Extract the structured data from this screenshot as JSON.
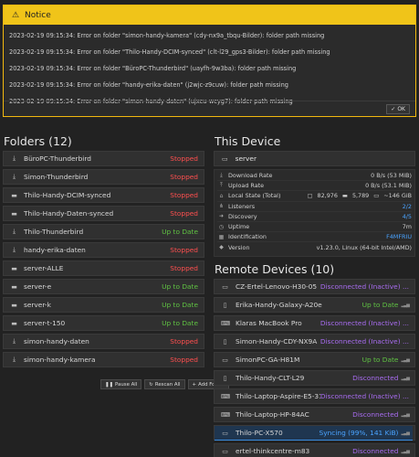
{
  "notice": {
    "title": "Notice",
    "lines": [
      "2023-02-19 09:15:34: Error on folder \"simon-handy-kamera\" (cdy-nx9a_tbqu-Bilder): folder path missing",
      "2023-02-19 09:15:34: Error on folder \"Thilo-Handy-DCIM-synced\" (clt-l29_gps3-Bilder): folder path missing",
      "2023-02-19 09:15:34: Error on folder \"BüroPC-Thunderbird\" (uayfh-9w3ba): folder path missing",
      "2023-02-19 09:15:34: Error on folder \"handy-erika-daten\" (j2wjc-z9cuw): folder path missing",
      "2023-02-19 09:15:34: Error on folder \"simon-handy-daten\" (ujxcu-wcyg7): folder path missing"
    ],
    "ok_label": "OK"
  },
  "folders": {
    "title": "Folders (12)",
    "items": [
      {
        "name": "BüroPC-Thunderbird",
        "status": "Stopped",
        "icon": "download-icon"
      },
      {
        "name": "Simon-Thunderbird",
        "status": "Stopped",
        "icon": "download-icon"
      },
      {
        "name": "Thilo-Handy-DCIM-synced",
        "status": "Stopped",
        "icon": "folder-icon"
      },
      {
        "name": "Thilo-Handy-Daten-synced",
        "status": "Stopped",
        "icon": "folder-icon"
      },
      {
        "name": "Thilo-Thunderbird",
        "status": "Up to Date",
        "icon": "download-icon"
      },
      {
        "name": "handy-erika-daten",
        "status": "Stopped",
        "icon": "download-icon"
      },
      {
        "name": "server-ALLE",
        "status": "Stopped",
        "icon": "folder-icon"
      },
      {
        "name": "server-e",
        "status": "Up to Date",
        "icon": "folder-icon"
      },
      {
        "name": "server-k",
        "status": "Up to Date",
        "icon": "folder-icon"
      },
      {
        "name": "server-t-150",
        "status": "Up to Date",
        "icon": "folder-icon"
      },
      {
        "name": "simon-handy-daten",
        "status": "Stopped",
        "icon": "download-icon"
      },
      {
        "name": "simon-handy-kamera",
        "status": "Stopped",
        "icon": "download-icon"
      }
    ],
    "actions": {
      "pause_all": "Pause All",
      "rescan_all": "Rescan All",
      "add_folder": "Add Folder"
    }
  },
  "this_device": {
    "title": "This Device",
    "name": "server",
    "rows": [
      {
        "key": "Download Rate",
        "value": "0 B/s (53 MiB)",
        "icon": "download-icon"
      },
      {
        "key": "Upload Rate",
        "value": "0 B/s (53.1 MiB)",
        "icon": "upload-icon"
      },
      {
        "key": "Local State (Total)",
        "value": "",
        "icon": "home-icon"
      },
      {
        "key": "Listeners",
        "value": "2/2",
        "icon": "sitemap-icon"
      },
      {
        "key": "Discovery",
        "value": "4/5",
        "icon": "signin-icon"
      },
      {
        "key": "Uptime",
        "value": "7m",
        "icon": "clock-icon"
      },
      {
        "key": "Identification",
        "value": "F4MFRIU",
        "icon": "qrcode-icon"
      },
      {
        "key": "Version",
        "value": "v1.23.0, Linux (64-bit Intel/AMD)",
        "icon": "tag-icon"
      }
    ],
    "local_state": {
      "files": "82,976",
      "dirs": "5,789",
      "size": "~146 GiB"
    }
  },
  "remote": {
    "title": "Remote Devices (10)",
    "items": [
      {
        "name": "CZ-Ertel-Lenovo-H30-05",
        "status": "Disconnected (Inactive) ...",
        "icon": "desktop-icon",
        "signal": false
      },
      {
        "name": "Erika-Handy-Galaxy-A20e",
        "status": "Up to Date",
        "icon": "mobile-icon",
        "signal": true
      },
      {
        "name": "Klaras MacBook Pro",
        "status": "Disconnected (Inactive) ...",
        "icon": "laptop-icon",
        "signal": false
      },
      {
        "name": "Simon-Handy-CDY-NX9A",
        "status": "Disconnected (Inactive) ...",
        "icon": "mobile-icon",
        "signal": false
      },
      {
        "name": "SimonPC-GA-H81M",
        "status": "Up to Date",
        "icon": "desktop-icon",
        "signal": true
      },
      {
        "name": "Thilo-Handy-CLT-L29",
        "status": "Disconnected",
        "icon": "mobile-icon",
        "signal": true
      },
      {
        "name": "Thilo-Laptop-Aspire-E5-311",
        "status": "Disconnected (Inactive) ...",
        "icon": "laptop-icon",
        "signal": false
      },
      {
        "name": "Thilo-Laptop-HP-84AC",
        "status": "Disconnected",
        "icon": "laptop-icon",
        "signal": true
      },
      {
        "name": "Thilo-PC-X570",
        "status": "Syncing (99%, 141 KiB)",
        "icon": "desktop-icon",
        "signal": true,
        "progress": 0.99
      },
      {
        "name": "ertel-thinkcentre-m83",
        "status": "Disconnected",
        "icon": "desktop-icon",
        "signal": true
      }
    ]
  },
  "colors": {
    "stopped": "#ff4f4f",
    "up_to_date": "#5fc142",
    "disconnected": "#a86cf0",
    "syncing": "#4aa3ff",
    "notice_accent": "#f0c419"
  }
}
